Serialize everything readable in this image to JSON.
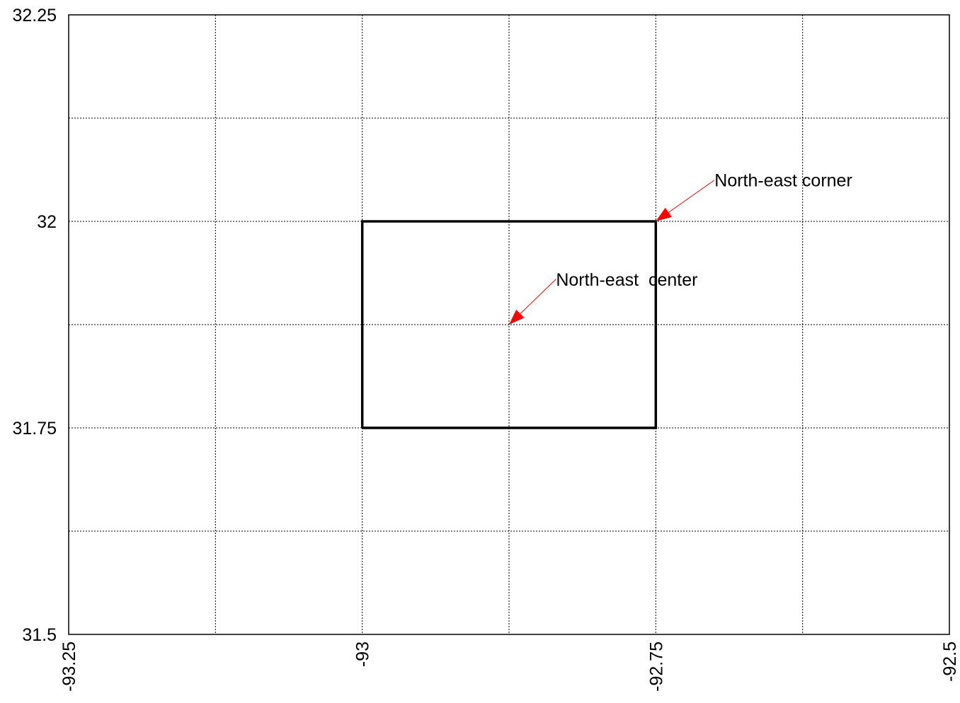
{
  "chart_data": {
    "type": "line",
    "title": "",
    "xlabel": "",
    "ylabel": "",
    "xlim": [
      -93.25,
      -92.5
    ],
    "ylim": [
      31.5,
      32.25
    ],
    "grid": true,
    "x_ticks": [
      {
        "value": -93.25,
        "label": "-93.25"
      },
      {
        "value": -93.125,
        "label": ""
      },
      {
        "value": -93.0,
        "label": "-93"
      },
      {
        "value": -92.875,
        "label": ""
      },
      {
        "value": -92.75,
        "label": "-92.75"
      },
      {
        "value": -92.625,
        "label": ""
      },
      {
        "value": -92.5,
        "label": "-92.5"
      }
    ],
    "y_ticks": [
      {
        "value": 31.5,
        "label": "31.5"
      },
      {
        "value": 31.625,
        "label": ""
      },
      {
        "value": 31.75,
        "label": "31.75"
      },
      {
        "value": 31.875,
        "label": ""
      },
      {
        "value": 32.0,
        "label": "32"
      },
      {
        "value": 32.125,
        "label": ""
      },
      {
        "value": 32.25,
        "label": "32.25"
      }
    ],
    "series": [
      {
        "color": "#000000",
        "points": [
          [
            -93.0,
            31.75
          ],
          [
            -92.75,
            31.75
          ],
          [
            -92.75,
            32.0
          ],
          [
            -93.0,
            32.0
          ],
          [
            -93.0,
            31.75
          ]
        ]
      }
    ],
    "annotations": [
      {
        "text": "North-east corner",
        "point": [
          -92.75,
          32.0
        ],
        "text_anchor": [
          -92.7,
          32.05
        ],
        "arrow_color": "#ff0000"
      },
      {
        "text": "North-east  center",
        "point": [
          -92.875,
          31.875
        ],
        "text_anchor": [
          -92.835,
          31.93
        ],
        "arrow_color": "#ff0000"
      }
    ]
  }
}
